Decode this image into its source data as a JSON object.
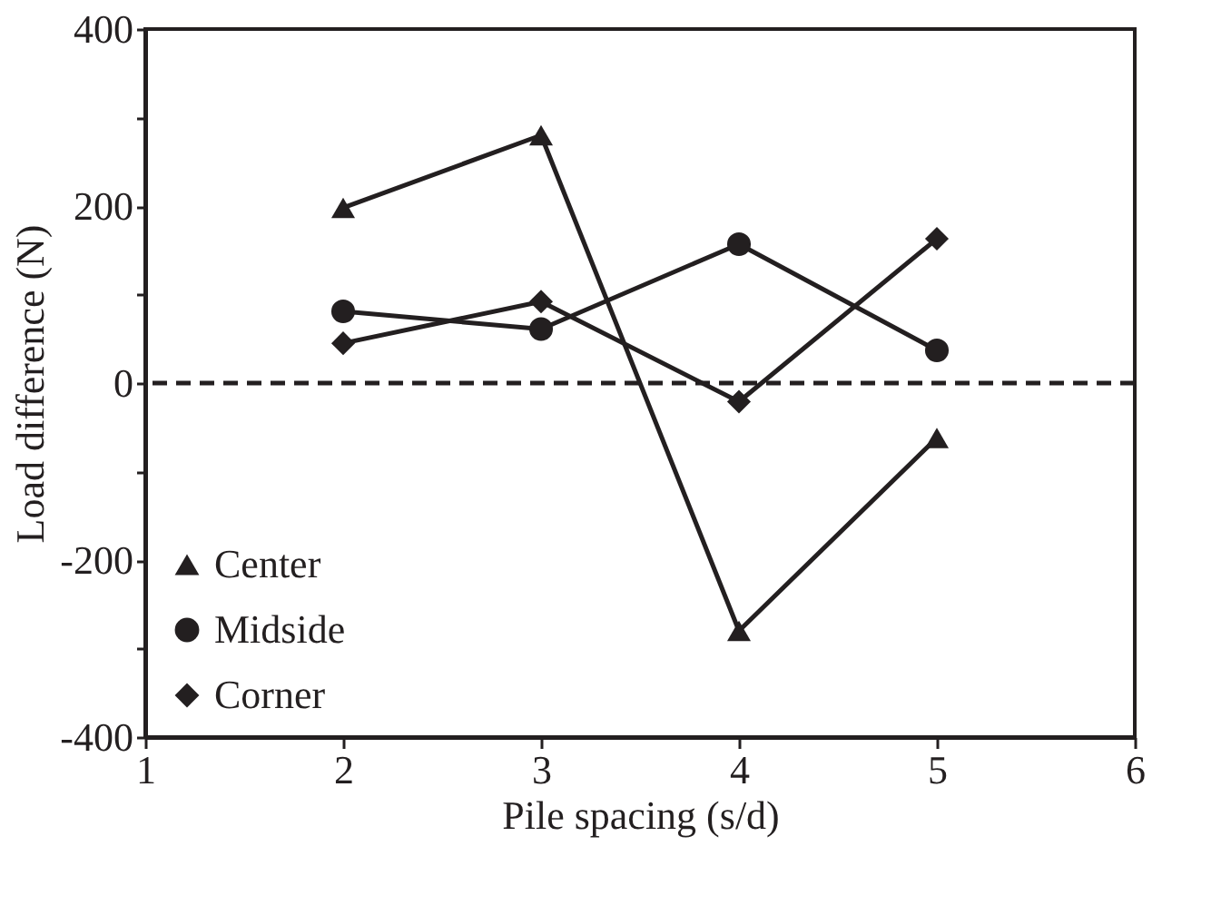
{
  "chart_data": {
    "type": "line",
    "xlabel": "Pile spacing (s/d)",
    "ylabel": "Load difference (N)",
    "xlim": [
      1,
      6
    ],
    "xticks": [
      1,
      2,
      3,
      4,
      5,
      6
    ],
    "ylim": [
      -400,
      400
    ],
    "yticks": [
      -400,
      {
        "value": -300,
        "label": null
      },
      -200,
      {
        "value": -100,
        "label": null
      },
      0,
      {
        "value": 100,
        "label": null
      },
      200,
      {
        "value": 300,
        "label": null
      },
      400
    ],
    "x": [
      2,
      3,
      4,
      5
    ],
    "series": [
      {
        "name": "Center",
        "color": "#231f20",
        "marker": "triangle",
        "values": [
          198,
          280,
          -280,
          -62
        ]
      },
      {
        "name": "Midside",
        "color": "#231f20",
        "marker": "circle",
        "values": [
          81,
          61,
          157,
          37
        ]
      },
      {
        "name": "Corner",
        "color": "#231f20",
        "marker": "diamond",
        "values": [
          45,
          92,
          -21,
          163
        ]
      }
    ],
    "ref_lines": [
      {
        "axis": "y",
        "value": 0,
        "color": "#231f20",
        "line_style": "dashed"
      }
    ],
    "grid": false,
    "legend": "bottom left",
    "line_style": "solid"
  }
}
